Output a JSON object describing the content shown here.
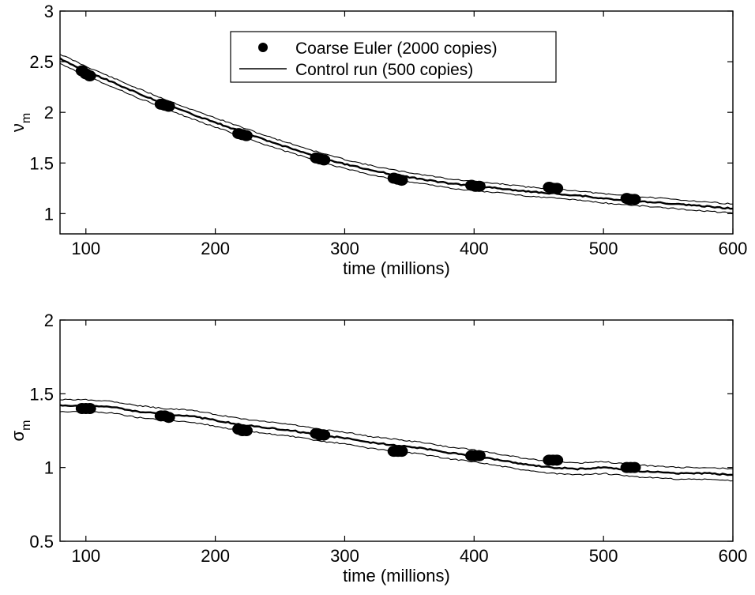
{
  "chart_data": [
    {
      "type": "line",
      "title": "",
      "xlabel": "time (millions)",
      "ylabel": "ν",
      "ylabel_sub": "m",
      "xlim": [
        80,
        600
      ],
      "ylim": [
        0.8,
        3
      ],
      "xticks": [
        100,
        200,
        300,
        400,
        500,
        600
      ],
      "yticks": [
        1,
        1.5,
        2,
        2.5,
        3
      ],
      "xtick_labels": [
        "100",
        "200",
        "300",
        "400",
        "500",
        "600"
      ],
      "ytick_labels": [
        "1",
        "1.5",
        "2",
        "2.5",
        "3"
      ],
      "grid": false,
      "legend": {
        "placement": "top-center",
        "entries": [
          {
            "label": "Coarse Euler (2000 copies)",
            "marker": "dot"
          },
          {
            "label": "Control run (500 copies)",
            "marker": "line"
          }
        ]
      },
      "series": [
        {
          "name": "Control run (500 copies)",
          "style": "mean-with-band",
          "x": [
            80,
            100,
            120,
            140,
            160,
            180,
            200,
            220,
            240,
            260,
            280,
            300,
            320,
            340,
            360,
            380,
            400,
            420,
            440,
            460,
            480,
            500,
            520,
            540,
            560,
            580,
            600
          ],
          "mean": [
            2.53,
            2.41,
            2.3,
            2.19,
            2.09,
            1.99,
            1.9,
            1.81,
            1.72,
            1.64,
            1.56,
            1.49,
            1.43,
            1.38,
            1.34,
            1.3,
            1.27,
            1.25,
            1.22,
            1.2,
            1.18,
            1.15,
            1.13,
            1.11,
            1.09,
            1.07,
            1.05
          ],
          "band": 0.045
        },
        {
          "name": "Coarse Euler (2000 copies)",
          "style": "dot-clusters",
          "x": [
            97,
            100,
            103,
            158,
            161,
            164,
            218,
            221,
            224,
            278,
            281,
            284,
            338,
            341,
            344,
            398,
            401,
            404,
            458,
            461,
            464,
            518,
            521,
            524
          ],
          "y": [
            2.41,
            2.38,
            2.36,
            2.08,
            2.07,
            2.06,
            1.79,
            1.78,
            1.77,
            1.55,
            1.54,
            1.53,
            1.35,
            1.34,
            1.33,
            1.28,
            1.27,
            1.27,
            1.26,
            1.25,
            1.25,
            1.15,
            1.14,
            1.14
          ]
        }
      ]
    },
    {
      "type": "line",
      "title": "",
      "xlabel": "time (millions)",
      "ylabel": "σ",
      "ylabel_sub": "m",
      "xlim": [
        80,
        600
      ],
      "ylim": [
        0.5,
        2
      ],
      "xticks": [
        100,
        200,
        300,
        400,
        500,
        600
      ],
      "yticks": [
        0.5,
        1,
        1.5,
        2
      ],
      "xtick_labels": [
        "100",
        "200",
        "300",
        "400",
        "500",
        "600"
      ],
      "ytick_labels": [
        "0.5",
        "1",
        "1.5",
        "2"
      ],
      "grid": false,
      "series": [
        {
          "name": "Control run (500 copies)",
          "style": "mean-with-band",
          "x": [
            80,
            100,
            120,
            140,
            160,
            180,
            200,
            220,
            240,
            260,
            280,
            300,
            320,
            340,
            360,
            380,
            400,
            420,
            440,
            460,
            480,
            500,
            520,
            540,
            560,
            580,
            600
          ],
          "mean": [
            1.42,
            1.42,
            1.41,
            1.38,
            1.36,
            1.35,
            1.32,
            1.29,
            1.27,
            1.25,
            1.22,
            1.2,
            1.17,
            1.15,
            1.13,
            1.1,
            1.08,
            1.05,
            1.02,
            1.0,
            0.99,
            1.0,
            0.98,
            0.97,
            0.96,
            0.96,
            0.95
          ],
          "band": 0.04
        },
        {
          "name": "Coarse Euler (2000 copies)",
          "style": "dot-clusters",
          "x": [
            97,
            100,
            103,
            158,
            161,
            164,
            218,
            221,
            224,
            278,
            281,
            284,
            338,
            341,
            344,
            398,
            401,
            404,
            458,
            461,
            464,
            518,
            521,
            524
          ],
          "y": [
            1.4,
            1.4,
            1.4,
            1.35,
            1.35,
            1.34,
            1.26,
            1.25,
            1.25,
            1.23,
            1.22,
            1.22,
            1.11,
            1.11,
            1.11,
            1.08,
            1.08,
            1.08,
            1.05,
            1.05,
            1.05,
            1.0,
            1.0,
            1.0
          ]
        }
      ]
    }
  ]
}
